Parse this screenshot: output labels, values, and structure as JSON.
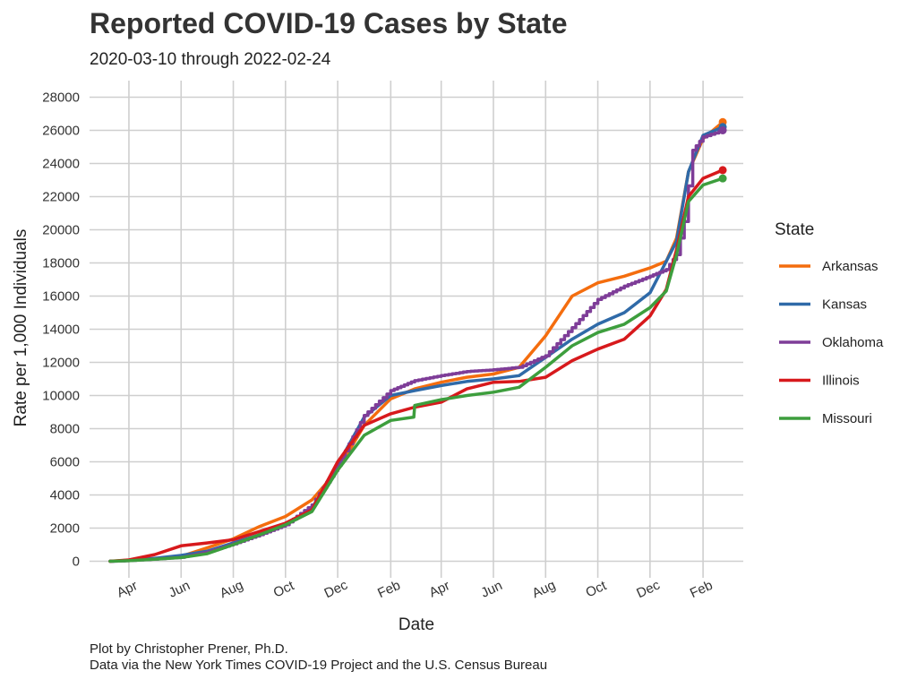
{
  "chart_data": {
    "type": "line",
    "title": "Reported COVID-19 Cases by State",
    "subtitle": "2020-03-10 through 2022-02-24",
    "xlabel": "Date",
    "ylabel": "Rate per 1,000 Individuals",
    "caption": [
      "Plot by Christopher Prener, Ph.D.",
      "Data via the New York Times COVID-19 Project and the U.S. Census Bureau"
    ],
    "xlim": [
      "2020-02-15",
      "2022-03-20"
    ],
    "ylim": [
      -1000,
      29000
    ],
    "yticks": [
      0,
      2000,
      4000,
      6000,
      8000,
      10000,
      12000,
      14000,
      16000,
      18000,
      20000,
      22000,
      24000,
      26000,
      28000
    ],
    "xticks": [
      {
        "date": "2020-04-01",
        "label": "Apr"
      },
      {
        "date": "2020-06-01",
        "label": "Jun"
      },
      {
        "date": "2020-08-01",
        "label": "Aug"
      },
      {
        "date": "2020-10-01",
        "label": "Oct"
      },
      {
        "date": "2020-12-01",
        "label": "Dec"
      },
      {
        "date": "2021-02-01",
        "label": "Feb"
      },
      {
        "date": "2021-04-01",
        "label": "Apr"
      },
      {
        "date": "2021-06-01",
        "label": "Jun"
      },
      {
        "date": "2021-08-01",
        "label": "Aug"
      },
      {
        "date": "2021-10-01",
        "label": "Oct"
      },
      {
        "date": "2021-12-01",
        "label": "Dec"
      },
      {
        "date": "2022-02-01",
        "label": "Feb"
      }
    ],
    "grid": true,
    "legend": {
      "title": "State",
      "position": "right"
    },
    "series": [
      {
        "name": "Arkansas",
        "color": "#f46d0e",
        "stepped": false,
        "points": [
          [
            "2020-03-10",
            0
          ],
          [
            "2020-04-01",
            60
          ],
          [
            "2020-05-01",
            150
          ],
          [
            "2020-06-01",
            300
          ],
          [
            "2020-07-01",
            800
          ],
          [
            "2020-08-01",
            1350
          ],
          [
            "2020-09-01",
            2100
          ],
          [
            "2020-10-01",
            2700
          ],
          [
            "2020-11-01",
            3700
          ],
          [
            "2020-12-01",
            5500
          ],
          [
            "2021-01-01",
            8200
          ],
          [
            "2021-02-01",
            9800
          ],
          [
            "2021-03-01",
            10400
          ],
          [
            "2021-04-01",
            10800
          ],
          [
            "2021-05-01",
            11100
          ],
          [
            "2021-06-01",
            11300
          ],
          [
            "2021-07-01",
            11700
          ],
          [
            "2021-08-01",
            13600
          ],
          [
            "2021-09-01",
            16000
          ],
          [
            "2021-10-01",
            16800
          ],
          [
            "2021-11-01",
            17200
          ],
          [
            "2021-12-01",
            17700
          ],
          [
            "2021-12-20",
            18100
          ],
          [
            "2022-01-01",
            19500
          ],
          [
            "2022-01-15",
            23500
          ],
          [
            "2022-02-01",
            25500
          ],
          [
            "2022-02-24",
            26500
          ]
        ]
      },
      {
        "name": "Kansas",
        "color": "#2f6aa8",
        "stepped": false,
        "points": [
          [
            "2020-03-10",
            0
          ],
          [
            "2020-04-01",
            40
          ],
          [
            "2020-05-01",
            180
          ],
          [
            "2020-06-01",
            350
          ],
          [
            "2020-07-01",
            600
          ],
          [
            "2020-08-01",
            1100
          ],
          [
            "2020-09-01",
            1600
          ],
          [
            "2020-10-01",
            2200
          ],
          [
            "2020-11-01",
            3200
          ],
          [
            "2020-12-01",
            5800
          ],
          [
            "2021-01-01",
            8700
          ],
          [
            "2021-02-01",
            10000
          ],
          [
            "2021-03-01",
            10300
          ],
          [
            "2021-04-01",
            10600
          ],
          [
            "2021-05-01",
            10850
          ],
          [
            "2021-06-01",
            11000
          ],
          [
            "2021-07-01",
            11200
          ],
          [
            "2021-08-01",
            12300
          ],
          [
            "2021-09-01",
            13400
          ],
          [
            "2021-10-01",
            14300
          ],
          [
            "2021-11-01",
            15000
          ],
          [
            "2021-12-01",
            16200
          ],
          [
            "2022-01-01",
            19300
          ],
          [
            "2022-01-15",
            23500
          ],
          [
            "2022-02-01",
            25700
          ],
          [
            "2022-02-24",
            26200
          ]
        ]
      },
      {
        "name": "Oklahoma",
        "color": "#7e3d98",
        "stepped": true,
        "points": [
          [
            "2020-03-10",
            0
          ],
          [
            "2020-04-01",
            40
          ],
          [
            "2020-05-01",
            130
          ],
          [
            "2020-06-01",
            240
          ],
          [
            "2020-07-01",
            550
          ],
          [
            "2020-08-01",
            1050
          ],
          [
            "2020-09-01",
            1600
          ],
          [
            "2020-10-01",
            2200
          ],
          [
            "2020-11-01",
            3400
          ],
          [
            "2020-12-01",
            5800
          ],
          [
            "2021-01-01",
            8800
          ],
          [
            "2021-02-01",
            10300
          ],
          [
            "2021-03-01",
            10900
          ],
          [
            "2021-04-01",
            11200
          ],
          [
            "2021-05-01",
            11450
          ],
          [
            "2021-06-01",
            11550
          ],
          [
            "2021-07-01",
            11700
          ],
          [
            "2021-08-01",
            12400
          ],
          [
            "2021-09-01",
            14100
          ],
          [
            "2021-10-01",
            15800
          ],
          [
            "2021-11-01",
            16600
          ],
          [
            "2021-12-01",
            17200
          ],
          [
            "2021-12-20",
            17600
          ],
          [
            "2022-01-01",
            18500
          ],
          [
            "2022-01-10",
            20500
          ],
          [
            "2022-01-20",
            24800
          ],
          [
            "2022-02-01",
            25600
          ],
          [
            "2022-02-24",
            26000
          ]
        ]
      },
      {
        "name": "Illinois",
        "color": "#d7191c",
        "stepped": false,
        "points": [
          [
            "2020-03-10",
            0
          ],
          [
            "2020-04-01",
            80
          ],
          [
            "2020-05-01",
            400
          ],
          [
            "2020-06-01",
            930
          ],
          [
            "2020-07-01",
            1100
          ],
          [
            "2020-08-01",
            1300
          ],
          [
            "2020-09-01",
            1800
          ],
          [
            "2020-10-01",
            2300
          ],
          [
            "2020-11-01",
            3100
          ],
          [
            "2020-12-01",
            6000
          ],
          [
            "2021-01-01",
            8200
          ],
          [
            "2021-02-01",
            8900
          ],
          [
            "2021-03-01",
            9300
          ],
          [
            "2021-04-01",
            9600
          ],
          [
            "2021-05-01",
            10400
          ],
          [
            "2021-06-01",
            10800
          ],
          [
            "2021-07-01",
            10850
          ],
          [
            "2021-08-01",
            11100
          ],
          [
            "2021-09-01",
            12100
          ],
          [
            "2021-10-01",
            12800
          ],
          [
            "2021-11-01",
            13400
          ],
          [
            "2021-12-01",
            14800
          ],
          [
            "2021-12-20",
            16400
          ],
          [
            "2022-01-01",
            18800
          ],
          [
            "2022-01-15",
            22000
          ],
          [
            "2022-02-01",
            23100
          ],
          [
            "2022-02-24",
            23600
          ]
        ]
      },
      {
        "name": "Missouri",
        "color": "#3d9e3d",
        "stepped": false,
        "points": [
          [
            "2020-03-10",
            0
          ],
          [
            "2020-04-01",
            30
          ],
          [
            "2020-05-01",
            120
          ],
          [
            "2020-06-01",
            220
          ],
          [
            "2020-07-01",
            450
          ],
          [
            "2020-08-01",
            1000
          ],
          [
            "2020-09-01",
            1600
          ],
          [
            "2020-10-01",
            2200
          ],
          [
            "2020-11-01",
            3000
          ],
          [
            "2020-12-01",
            5500
          ],
          [
            "2021-01-01",
            7600
          ],
          [
            "2021-02-01",
            8500
          ],
          [
            "2021-02-28",
            8700
          ],
          [
            "2021-03-01",
            9400
          ],
          [
            "2021-04-01",
            9750
          ],
          [
            "2021-05-01",
            10000
          ],
          [
            "2021-06-01",
            10200
          ],
          [
            "2021-07-01",
            10500
          ],
          [
            "2021-08-01",
            11700
          ],
          [
            "2021-09-01",
            13000
          ],
          [
            "2021-10-01",
            13800
          ],
          [
            "2021-11-01",
            14300
          ],
          [
            "2021-12-01",
            15300
          ],
          [
            "2021-12-20",
            16300
          ],
          [
            "2022-01-01",
            18500
          ],
          [
            "2022-01-15",
            21700
          ],
          [
            "2022-02-01",
            22700
          ],
          [
            "2022-02-24",
            23100
          ]
        ]
      }
    ]
  }
}
